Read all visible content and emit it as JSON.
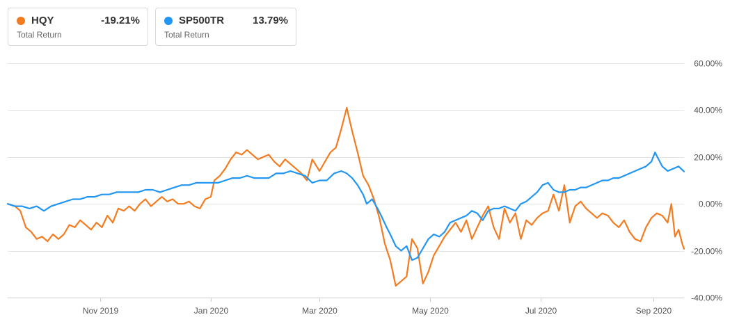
{
  "legend": [
    {
      "ticker": "HQY",
      "return_text": "-19.21%",
      "sublabel": "Total Return",
      "color": "#f47b20"
    },
    {
      "ticker": "SP500TR",
      "return_text": "13.79%",
      "sublabel": "Total Return",
      "color": "#2196f3"
    }
  ],
  "chart_data": {
    "type": "line",
    "x_type": "date",
    "xlim": [
      "2019-09-11",
      "2020-09-18"
    ],
    "ylim": [
      -40,
      60
    ],
    "yticks": [
      60,
      40,
      20,
      0,
      -20,
      -40
    ],
    "ytick_labels": [
      "60.00%",
      "40.00%",
      "20.00%",
      "0.00%",
      "-20.00%",
      "-40.00%"
    ],
    "xticks": [
      "2019-11-01",
      "2020-01-01",
      "2020-03-01",
      "2020-05-01",
      "2020-07-01",
      "2020-09-01"
    ],
    "xtick_labels": [
      "Nov 2019",
      "Jan 2020",
      "Mar 2020",
      "May 2020",
      "Jul 2020",
      "Sep 2020"
    ],
    "grid": true,
    "series": [
      {
        "name": "HQY",
        "color": "#f47b20",
        "points": [
          [
            "2019-09-11",
            0
          ],
          [
            "2019-09-15",
            -1
          ],
          [
            "2019-09-18",
            -3
          ],
          [
            "2019-09-21",
            -10
          ],
          [
            "2019-09-24",
            -12
          ],
          [
            "2019-09-27",
            -15
          ],
          [
            "2019-09-30",
            -14
          ],
          [
            "2019-10-03",
            -16
          ],
          [
            "2019-10-06",
            -13
          ],
          [
            "2019-10-09",
            -15
          ],
          [
            "2019-10-12",
            -13
          ],
          [
            "2019-10-15",
            -9
          ],
          [
            "2019-10-18",
            -10
          ],
          [
            "2019-10-21",
            -7
          ],
          [
            "2019-10-24",
            -9
          ],
          [
            "2019-10-27",
            -11
          ],
          [
            "2019-10-30",
            -8
          ],
          [
            "2019-11-02",
            -10
          ],
          [
            "2019-11-05",
            -5
          ],
          [
            "2019-11-08",
            -8
          ],
          [
            "2019-11-11",
            -2
          ],
          [
            "2019-11-14",
            -3
          ],
          [
            "2019-11-17",
            -1
          ],
          [
            "2019-11-20",
            -3
          ],
          [
            "2019-11-23",
            0
          ],
          [
            "2019-11-26",
            2
          ],
          [
            "2019-11-29",
            -1
          ],
          [
            "2019-12-02",
            1
          ],
          [
            "2019-12-05",
            3
          ],
          [
            "2019-12-08",
            1
          ],
          [
            "2019-12-11",
            2
          ],
          [
            "2019-12-14",
            0
          ],
          [
            "2019-12-17",
            0
          ],
          [
            "2019-12-20",
            1
          ],
          [
            "2019-12-23",
            -1
          ],
          [
            "2019-12-26",
            -2
          ],
          [
            "2019-12-29",
            2
          ],
          [
            "2020-01-01",
            3
          ],
          [
            "2020-01-03",
            10
          ],
          [
            "2020-01-06",
            12
          ],
          [
            "2020-01-09",
            15
          ],
          [
            "2020-01-12",
            19
          ],
          [
            "2020-01-15",
            22
          ],
          [
            "2020-01-18",
            21
          ],
          [
            "2020-01-21",
            23
          ],
          [
            "2020-01-24",
            21
          ],
          [
            "2020-01-27",
            19
          ],
          [
            "2020-01-30",
            20
          ],
          [
            "2020-02-02",
            21
          ],
          [
            "2020-02-05",
            18
          ],
          [
            "2020-02-08",
            16
          ],
          [
            "2020-02-11",
            19
          ],
          [
            "2020-02-14",
            17
          ],
          [
            "2020-02-17",
            15
          ],
          [
            "2020-02-20",
            13
          ],
          [
            "2020-02-23",
            10
          ],
          [
            "2020-02-26",
            19
          ],
          [
            "2020-03-01",
            14
          ],
          [
            "2020-03-04",
            18
          ],
          [
            "2020-03-07",
            22
          ],
          [
            "2020-03-10",
            24
          ],
          [
            "2020-03-13",
            32
          ],
          [
            "2020-03-16",
            41
          ],
          [
            "2020-03-19",
            31
          ],
          [
            "2020-03-22",
            22
          ],
          [
            "2020-03-25",
            12
          ],
          [
            "2020-03-28",
            8
          ],
          [
            "2020-03-31",
            2
          ],
          [
            "2020-04-03",
            -6
          ],
          [
            "2020-04-06",
            -17
          ],
          [
            "2020-04-09",
            -24
          ],
          [
            "2020-04-12",
            -35
          ],
          [
            "2020-04-15",
            -33
          ],
          [
            "2020-04-18",
            -31
          ],
          [
            "2020-04-21",
            -15
          ],
          [
            "2020-04-24",
            -19
          ],
          [
            "2020-04-27",
            -34
          ],
          [
            "2020-04-30",
            -29
          ],
          [
            "2020-05-03",
            -22
          ],
          [
            "2020-05-06",
            -18
          ],
          [
            "2020-05-09",
            -14
          ],
          [
            "2020-05-12",
            -11
          ],
          [
            "2020-05-15",
            -8
          ],
          [
            "2020-05-18",
            -12
          ],
          [
            "2020-05-21",
            -7
          ],
          [
            "2020-05-24",
            -15
          ],
          [
            "2020-05-27",
            -10
          ],
          [
            "2020-05-30",
            -5
          ],
          [
            "2020-06-02",
            -1
          ],
          [
            "2020-06-05",
            -10
          ],
          [
            "2020-06-08",
            -15
          ],
          [
            "2020-06-11",
            -2
          ],
          [
            "2020-06-14",
            -8
          ],
          [
            "2020-06-17",
            -4
          ],
          [
            "2020-06-20",
            -15
          ],
          [
            "2020-06-23",
            -7
          ],
          [
            "2020-06-26",
            -9
          ],
          [
            "2020-06-29",
            -6
          ],
          [
            "2020-07-02",
            -4
          ],
          [
            "2020-07-05",
            -3
          ],
          [
            "2020-07-08",
            4
          ],
          [
            "2020-07-11",
            -3
          ],
          [
            "2020-07-14",
            8
          ],
          [
            "2020-07-17",
            -8
          ],
          [
            "2020-07-20",
            -1
          ],
          [
            "2020-07-23",
            1
          ],
          [
            "2020-07-26",
            -2
          ],
          [
            "2020-07-29",
            -4
          ],
          [
            "2020-08-01",
            -6
          ],
          [
            "2020-08-04",
            -4
          ],
          [
            "2020-08-07",
            -5
          ],
          [
            "2020-08-10",
            -8
          ],
          [
            "2020-08-13",
            -10
          ],
          [
            "2020-08-16",
            -7
          ],
          [
            "2020-08-19",
            -12
          ],
          [
            "2020-08-22",
            -15
          ],
          [
            "2020-08-25",
            -16
          ],
          [
            "2020-08-28",
            -10
          ],
          [
            "2020-08-31",
            -6
          ],
          [
            "2020-09-03",
            -4
          ],
          [
            "2020-09-06",
            -5
          ],
          [
            "2020-09-09",
            -8
          ],
          [
            "2020-09-11",
            0
          ],
          [
            "2020-09-13",
            -14
          ],
          [
            "2020-09-15",
            -11
          ],
          [
            "2020-09-17",
            -17
          ],
          [
            "2020-09-18",
            -19.21
          ]
        ]
      },
      {
        "name": "SP500TR",
        "color": "#2196f3",
        "points": [
          [
            "2019-09-11",
            0
          ],
          [
            "2019-09-15",
            -1
          ],
          [
            "2019-09-19",
            -1
          ],
          [
            "2019-09-23",
            -2
          ],
          [
            "2019-09-27",
            -1
          ],
          [
            "2019-10-01",
            -3
          ],
          [
            "2019-10-05",
            -1
          ],
          [
            "2019-10-09",
            0
          ],
          [
            "2019-10-13",
            1
          ],
          [
            "2019-10-17",
            2
          ],
          [
            "2019-10-21",
            2
          ],
          [
            "2019-10-25",
            3
          ],
          [
            "2019-10-29",
            3
          ],
          [
            "2019-11-02",
            4
          ],
          [
            "2019-11-06",
            4
          ],
          [
            "2019-11-10",
            5
          ],
          [
            "2019-11-14",
            5
          ],
          [
            "2019-11-18",
            5
          ],
          [
            "2019-11-22",
            5
          ],
          [
            "2019-11-26",
            6
          ],
          [
            "2019-11-30",
            6
          ],
          [
            "2019-12-04",
            5
          ],
          [
            "2019-12-08",
            6
          ],
          [
            "2019-12-12",
            7
          ],
          [
            "2019-12-16",
            8
          ],
          [
            "2019-12-20",
            8
          ],
          [
            "2019-12-24",
            9
          ],
          [
            "2019-12-28",
            9
          ],
          [
            "2020-01-01",
            9
          ],
          [
            "2020-01-05",
            9
          ],
          [
            "2020-01-09",
            10
          ],
          [
            "2020-01-13",
            11
          ],
          [
            "2020-01-17",
            11
          ],
          [
            "2020-01-21",
            12
          ],
          [
            "2020-01-25",
            11
          ],
          [
            "2020-01-29",
            11
          ],
          [
            "2020-02-02",
            11
          ],
          [
            "2020-02-06",
            13
          ],
          [
            "2020-02-10",
            13
          ],
          [
            "2020-02-14",
            14
          ],
          [
            "2020-02-18",
            13
          ],
          [
            "2020-02-22",
            12
          ],
          [
            "2020-02-26",
            9
          ],
          [
            "2020-03-01",
            10
          ],
          [
            "2020-03-05",
            10
          ],
          [
            "2020-03-09",
            13
          ],
          [
            "2020-03-13",
            14
          ],
          [
            "2020-03-16",
            13
          ],
          [
            "2020-03-19",
            11
          ],
          [
            "2020-03-22",
            8
          ],
          [
            "2020-03-25",
            4
          ],
          [
            "2020-03-27",
            0
          ],
          [
            "2020-03-30",
            2
          ],
          [
            "2020-04-02",
            -2
          ],
          [
            "2020-04-04",
            -5
          ],
          [
            "2020-04-07",
            -10
          ],
          [
            "2020-04-09",
            -13
          ],
          [
            "2020-04-12",
            -18
          ],
          [
            "2020-04-15",
            -20
          ],
          [
            "2020-04-18",
            -18
          ],
          [
            "2020-04-21",
            -24
          ],
          [
            "2020-04-24",
            -23
          ],
          [
            "2020-04-27",
            -19
          ],
          [
            "2020-04-30",
            -15
          ],
          [
            "2020-05-03",
            -13
          ],
          [
            "2020-05-06",
            -14
          ],
          [
            "2020-05-09",
            -12
          ],
          [
            "2020-05-12",
            -8
          ],
          [
            "2020-05-15",
            -7
          ],
          [
            "2020-05-18",
            -6
          ],
          [
            "2020-05-21",
            -5
          ],
          [
            "2020-05-24",
            -3
          ],
          [
            "2020-05-27",
            -4
          ],
          [
            "2020-05-30",
            -7
          ],
          [
            "2020-06-02",
            -3
          ],
          [
            "2020-06-05",
            -2
          ],
          [
            "2020-06-08",
            -2
          ],
          [
            "2020-06-11",
            -1
          ],
          [
            "2020-06-14",
            -2
          ],
          [
            "2020-06-17",
            -3
          ],
          [
            "2020-06-20",
            0
          ],
          [
            "2020-06-23",
            1
          ],
          [
            "2020-06-26",
            3
          ],
          [
            "2020-06-29",
            5
          ],
          [
            "2020-07-02",
            8
          ],
          [
            "2020-07-05",
            9
          ],
          [
            "2020-07-08",
            6
          ],
          [
            "2020-07-11",
            5
          ],
          [
            "2020-07-14",
            5
          ],
          [
            "2020-07-17",
            6
          ],
          [
            "2020-07-20",
            6
          ],
          [
            "2020-07-23",
            7
          ],
          [
            "2020-07-26",
            7
          ],
          [
            "2020-07-29",
            8
          ],
          [
            "2020-08-01",
            9
          ],
          [
            "2020-08-04",
            10
          ],
          [
            "2020-08-07",
            10
          ],
          [
            "2020-08-10",
            11
          ],
          [
            "2020-08-13",
            11
          ],
          [
            "2020-08-16",
            12
          ],
          [
            "2020-08-19",
            13
          ],
          [
            "2020-08-22",
            14
          ],
          [
            "2020-08-25",
            15
          ],
          [
            "2020-08-28",
            16
          ],
          [
            "2020-08-31",
            18
          ],
          [
            "2020-09-02",
            22
          ],
          [
            "2020-09-04",
            19
          ],
          [
            "2020-09-06",
            16
          ],
          [
            "2020-09-09",
            14
          ],
          [
            "2020-09-12",
            15
          ],
          [
            "2020-09-15",
            16
          ],
          [
            "2020-09-18",
            13.79
          ]
        ]
      }
    ]
  }
}
